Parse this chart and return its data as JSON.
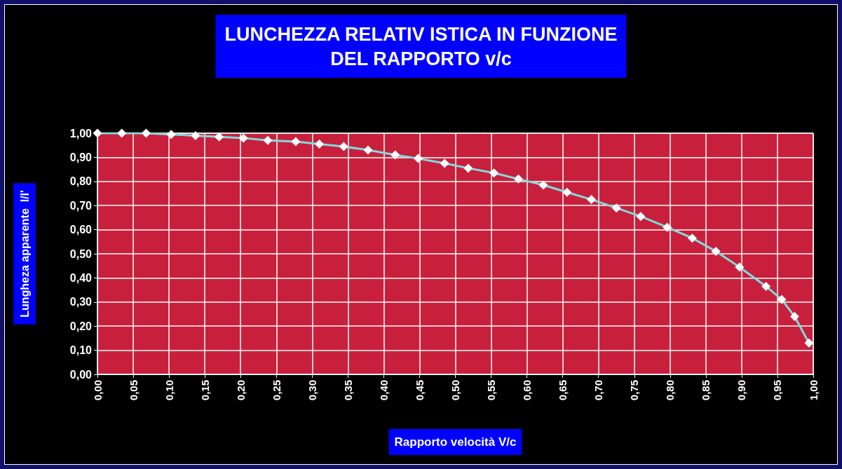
{
  "chart_data": {
    "type": "line",
    "title": "LUNCHEZZA RELATIV ISTICA IN FUNZIONE\nDEL RAPPORTO v/c",
    "xlabel": "Rapporto velocità V/c",
    "ylabel": "Lungheza apparente  l/l'",
    "x": [
      0,
      0.034,
      0.068,
      0.103,
      0.137,
      0.17,
      0.204,
      0.238,
      0.277,
      0.31,
      0.344,
      0.378,
      0.416,
      0.448,
      0.485,
      0.518,
      0.554,
      0.588,
      0.623,
      0.656,
      0.69,
      0.725,
      0.759,
      0.796,
      0.831,
      0.864,
      0.897,
      0.934,
      0.956,
      0.974,
      0.994
    ],
    "series": [
      {
        "color": "#7fdcdc",
        "values": [
          1.0,
          1.0,
          1.0,
          0.995,
          0.99,
          0.985,
          0.98,
          0.97,
          0.965,
          0.955,
          0.945,
          0.93,
          0.91,
          0.895,
          0.875,
          0.855,
          0.835,
          0.81,
          0.785,
          0.755,
          0.725,
          0.69,
          0.655,
          0.61,
          0.565,
          0.51,
          0.445,
          0.365,
          0.31,
          0.24,
          0.13
        ]
      }
    ],
    "xlim": [
      0,
      1
    ],
    "xticks": [
      {
        "value": 0,
        "label": "0,00"
      },
      {
        "value": 0.05,
        "label": "0,05"
      },
      {
        "value": 0.1,
        "label": "0,10"
      },
      {
        "value": 0.15,
        "label": "0,15"
      },
      {
        "value": 0.2,
        "label": "0,20"
      },
      {
        "value": 0.25,
        "label": "0,25"
      },
      {
        "value": 0.3,
        "label": "0,30"
      },
      {
        "value": 0.35,
        "label": "0,35"
      },
      {
        "value": 0.4,
        "label": "0,40"
      },
      {
        "value": 0.45,
        "label": "0,45"
      },
      {
        "value": 0.5,
        "label": "0,50"
      },
      {
        "value": 0.55,
        "label": "0,55"
      },
      {
        "value": 0.6,
        "label": "0,60"
      },
      {
        "value": 0.65,
        "label": "0,65"
      },
      {
        "value": 0.7,
        "label": "0,70"
      },
      {
        "value": 0.75,
        "label": "0,75"
      },
      {
        "value": 0.8,
        "label": "0,80"
      },
      {
        "value": 0.85,
        "label": "0,85"
      },
      {
        "value": 0.9,
        "label": "0,90"
      },
      {
        "value": 0.95,
        "label": "0,95"
      },
      {
        "value": 1,
        "label": "1,00"
      }
    ],
    "ylim": [
      0,
      1
    ],
    "yticks": [
      {
        "value": 0,
        "label": "0,00"
      },
      {
        "value": 0.1,
        "label": "0,10"
      },
      {
        "value": 0.2,
        "label": "0,20"
      },
      {
        "value": 0.3,
        "label": "0,30"
      },
      {
        "value": 0.4,
        "label": "0,40"
      },
      {
        "value": 0.5,
        "label": "0,50"
      },
      {
        "value": 0.6,
        "label": "0,60"
      },
      {
        "value": 0.7,
        "label": "0,70"
      },
      {
        "value": 0.8,
        "label": "0,80"
      },
      {
        "value": 0.9,
        "label": "0,90"
      },
      {
        "value": 1,
        "label": "1,00"
      }
    ],
    "grid": true,
    "marker": "diamond",
    "line_style": "solid"
  }
}
